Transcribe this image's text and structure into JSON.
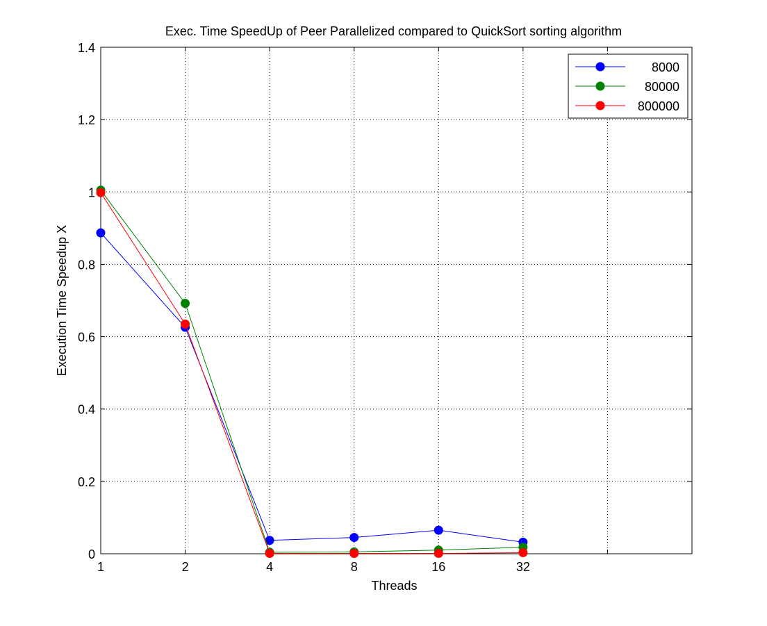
{
  "chart_data": {
    "type": "line",
    "title": "Exec. Time SpeedUp of Peer Parallelized compared to QuickSort sorting algorithm",
    "xlabel": "Threads",
    "ylabel": "Execution Time Speedup X",
    "x_tick_labels": [
      "1",
      "2",
      "4",
      "8",
      "16",
      "32",
      "",
      ""
    ],
    "y_ticks": [
      0,
      0.2,
      0.4,
      0.6,
      0.8,
      1,
      1.2,
      1.4
    ],
    "y_tick_labels": [
      "0",
      "0.2",
      "0.4",
      "0.6",
      "0.8",
      "1",
      "1.2",
      "1.4"
    ],
    "ylim": [
      0,
      1.4
    ],
    "grid": true,
    "legend_position": "top-right",
    "series": [
      {
        "name": "8000",
        "color": "#0000ff",
        "x": [
          "1",
          "2",
          "4",
          "8",
          "16",
          "32"
        ],
        "values": [
          0.887,
          0.626,
          0.037,
          0.045,
          0.065,
          0.032
        ]
      },
      {
        "name": "80000",
        "color": "#008000",
        "x": [
          "1",
          "2",
          "4",
          "8",
          "16",
          "32"
        ],
        "values": [
          1.005,
          0.692,
          0.004,
          0.005,
          0.01,
          0.018
        ]
      },
      {
        "name": "800000",
        "color": "#ff0000",
        "x": [
          "1",
          "2",
          "4",
          "8",
          "16",
          "32"
        ],
        "values": [
          0.998,
          0.635,
          0.001,
          0.001,
          0.001,
          0.003
        ]
      }
    ]
  }
}
